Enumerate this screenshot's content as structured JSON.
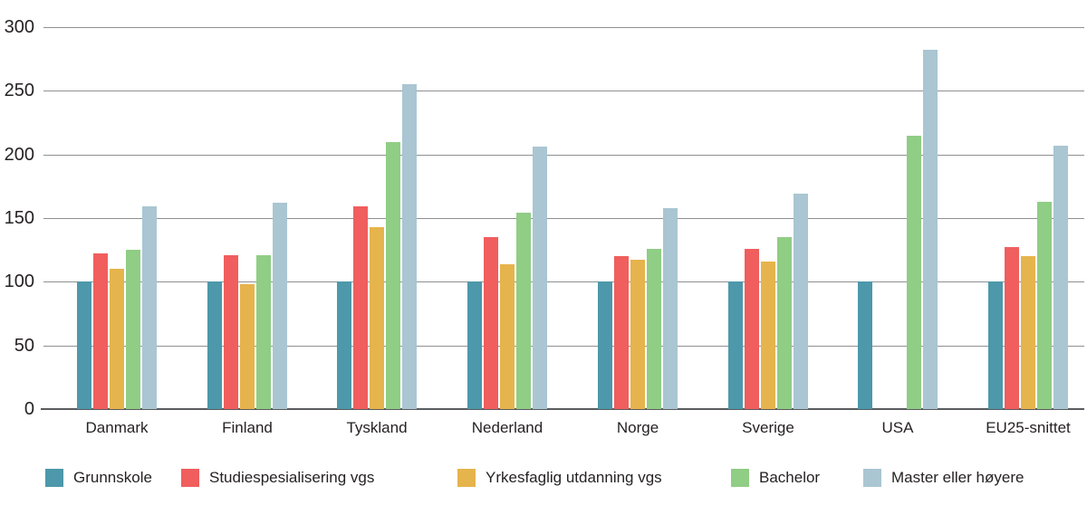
{
  "chart_data": {
    "type": "bar",
    "title": "",
    "xlabel": "",
    "ylabel": "",
    "categories": [
      "Danmark",
      "Finland",
      "Tyskland",
      "Nederland",
      "Norge",
      "Sverige",
      "USA",
      "EU25-snittet"
    ],
    "series": [
      {
        "name": "Grunnskole",
        "color": "#4d98aa",
        "values": [
          100,
          100,
          100,
          100,
          100,
          100,
          100,
          100
        ]
      },
      {
        "name": "Studiespesialisering vgs",
        "color": "#f05e5e",
        "values": [
          122,
          121,
          159,
          135,
          120,
          126,
          null,
          127
        ]
      },
      {
        "name": "Yrkesfaglig utdanning vgs",
        "color": "#e6b44c",
        "values": [
          110,
          98,
          143,
          114,
          117,
          116,
          null,
          120
        ]
      },
      {
        "name": "Bachelor",
        "color": "#90cd85",
        "values": [
          125,
          121,
          210,
          154,
          126,
          135,
          215,
          163
        ]
      },
      {
        "name": "Master eller høyere",
        "color": "#a9c6d2",
        "values": [
          159,
          162,
          255,
          206,
          158,
          169,
          282,
          207
        ]
      }
    ],
    "ylim": [
      0,
      300
    ],
    "yticks": [
      0,
      50,
      100,
      150,
      200,
      250,
      300
    ],
    "grid": true,
    "legend_position": "bottom",
    "colors": {
      "gridline": "#8f9093",
      "axis_baseline": "#5a5b5e",
      "text": "#262223",
      "background": "#ffffff"
    }
  }
}
